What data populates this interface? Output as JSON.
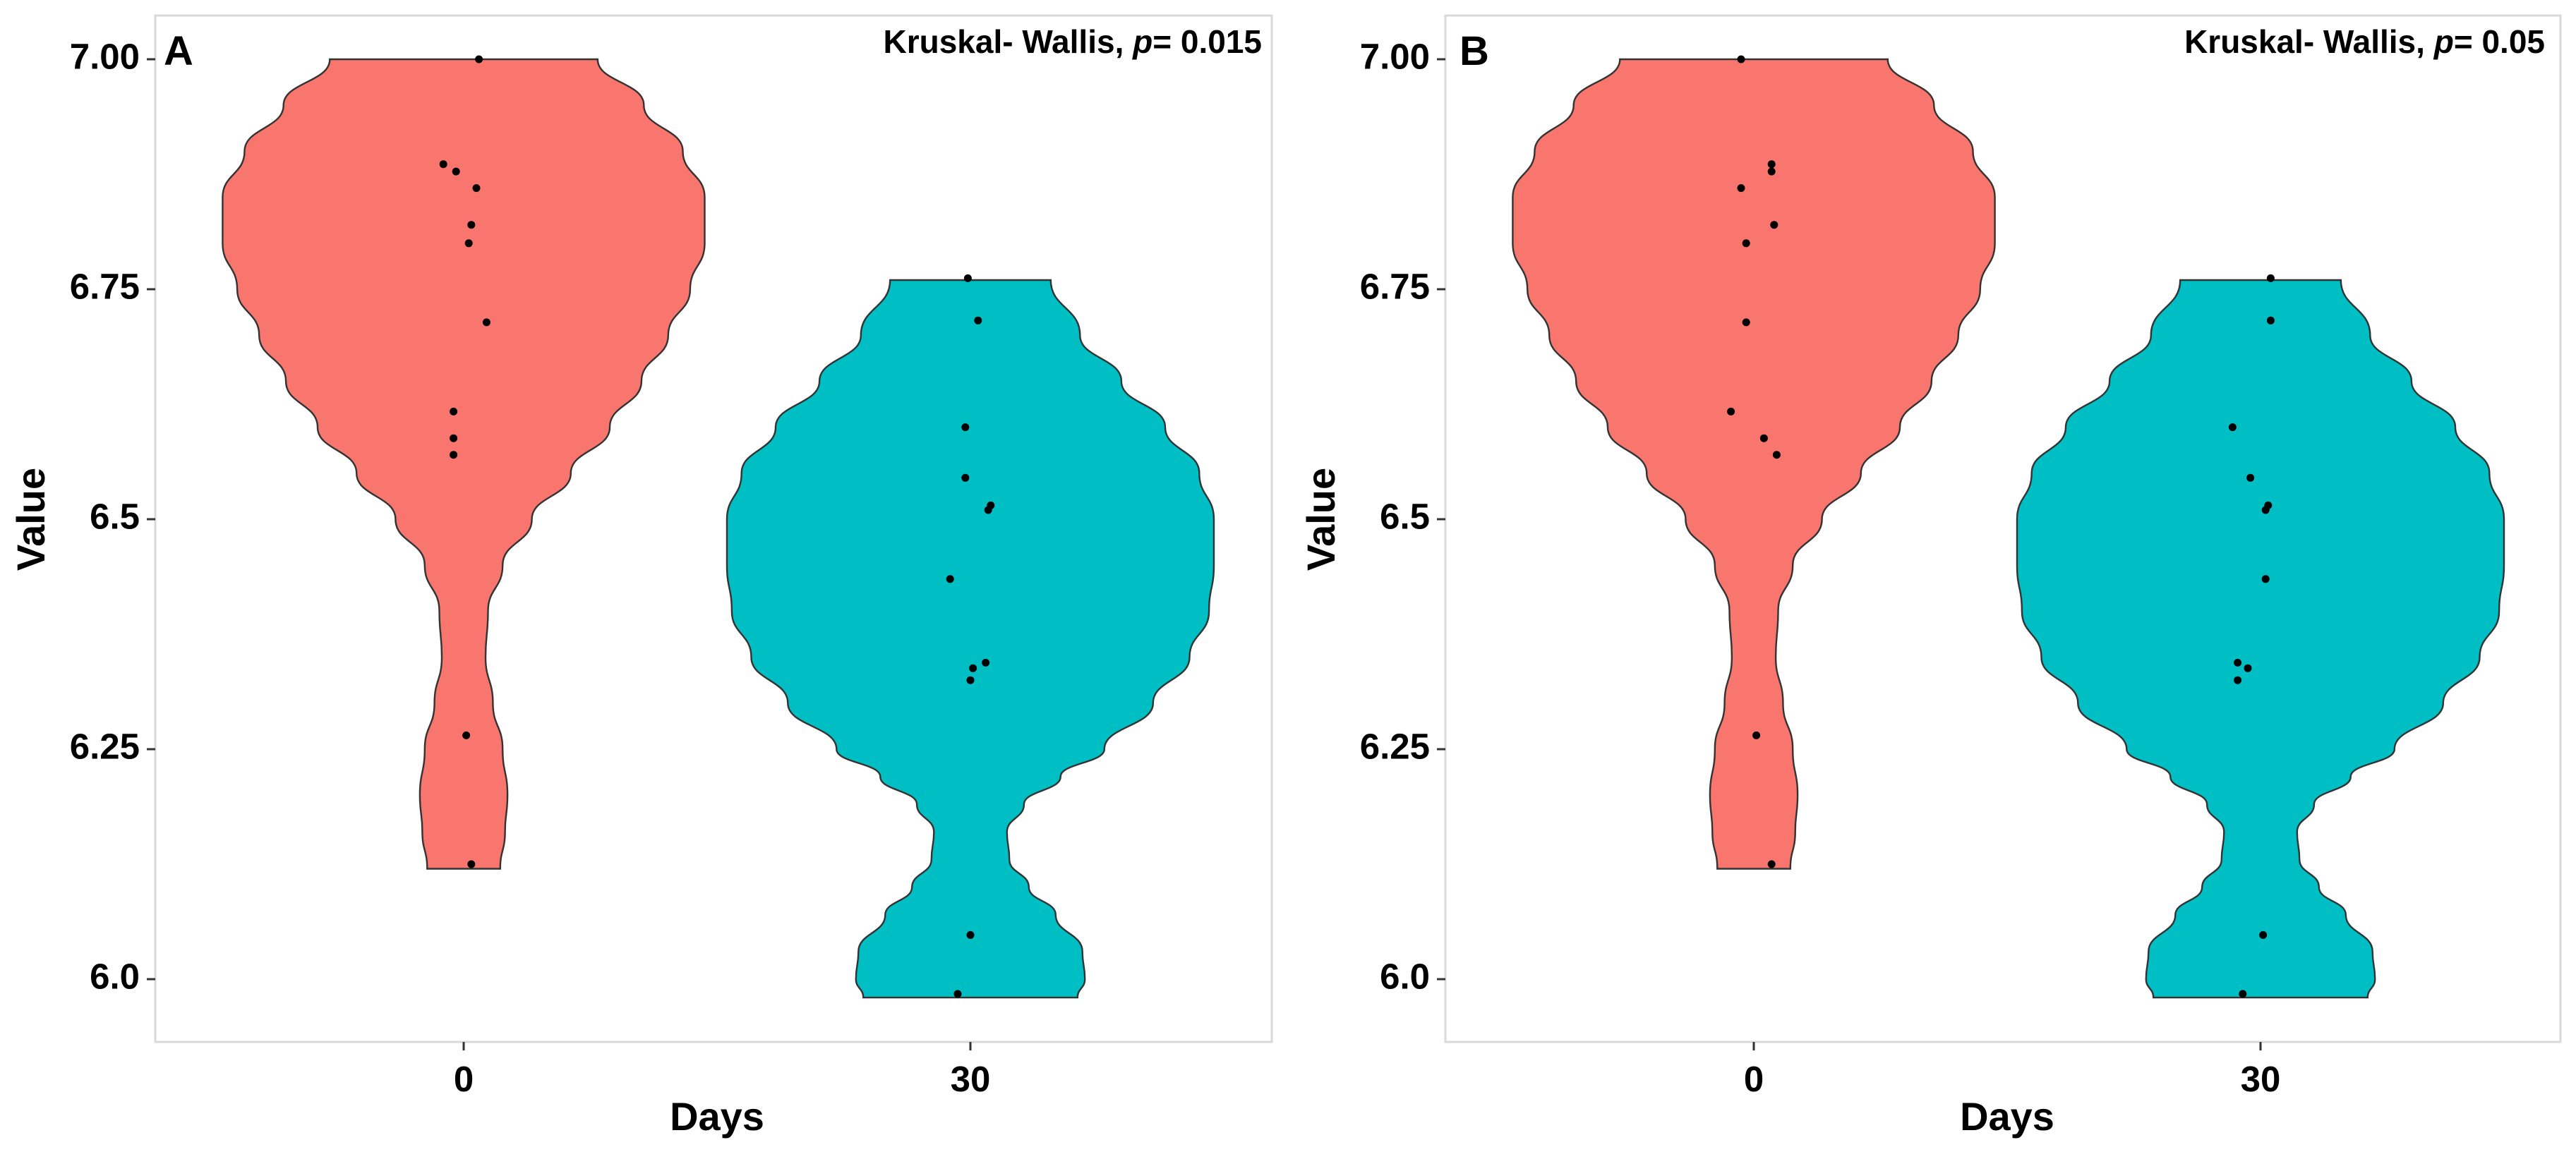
{
  "figure": {
    "x_axis_title": "Days",
    "y_axis_title": "Value"
  },
  "chart_data": [
    {
      "type": "violin",
      "panel_label": "A",
      "stat": {
        "prefix": "Kruskal- Wallis, ",
        "p_label": "p",
        "suffix": "= 0.015"
      },
      "xlabel": "Days",
      "ylabel": "Value",
      "ylim": [
        5.96,
        7.05
      ],
      "yticks": [
        {
          "value": 6.0,
          "label": "6.0"
        },
        {
          "value": 6.25,
          "label": "6.25"
        },
        {
          "value": 6.5,
          "label": "6.5"
        },
        {
          "value": 6.75,
          "label": "6.75"
        },
        {
          "value": 7.0,
          "label": "7.00"
        }
      ],
      "groups": [
        {
          "category": "0",
          "color": "#F8766D",
          "range": [
            6.12,
            7.0
          ],
          "density": [
            [
              6.12,
              0.15
            ],
            [
              6.16,
              0.17
            ],
            [
              6.2,
              0.18
            ],
            [
              6.25,
              0.16
            ],
            [
              6.3,
              0.12
            ],
            [
              6.35,
              0.09
            ],
            [
              6.4,
              0.1
            ],
            [
              6.45,
              0.16
            ],
            [
              6.5,
              0.28
            ],
            [
              6.55,
              0.44
            ],
            [
              6.6,
              0.6
            ],
            [
              6.65,
              0.73
            ],
            [
              6.7,
              0.84
            ],
            [
              6.75,
              0.93
            ],
            [
              6.8,
              0.99
            ],
            [
              6.85,
              0.99
            ],
            [
              6.9,
              0.9
            ],
            [
              6.95,
              0.74
            ],
            [
              7.0,
              0.55
            ]
          ],
          "points": [
            {
              "v": 6.125,
              "j": 0.03
            },
            {
              "v": 6.265,
              "j": 0.01
            },
            {
              "v": 6.57,
              "j": -0.04
            },
            {
              "v": 6.588,
              "j": -0.04
            },
            {
              "v": 6.617,
              "j": -0.04
            },
            {
              "v": 6.714,
              "j": 0.09
            },
            {
              "v": 6.8,
              "j": 0.02
            },
            {
              "v": 6.82,
              "j": 0.03
            },
            {
              "v": 6.86,
              "j": 0.05
            },
            {
              "v": 6.878,
              "j": -0.03
            },
            {
              "v": 6.886,
              "j": -0.08
            },
            {
              "v": 7.0,
              "j": 0.06
            }
          ]
        },
        {
          "category": "30",
          "color": "#00BFC4",
          "range": [
            5.98,
            6.76
          ],
          "density": [
            [
              5.98,
              0.44
            ],
            [
              6.0,
              0.47
            ],
            [
              6.03,
              0.46
            ],
            [
              6.07,
              0.35
            ],
            [
              6.1,
              0.24
            ],
            [
              6.13,
              0.16
            ],
            [
              6.16,
              0.15
            ],
            [
              6.19,
              0.22
            ],
            [
              6.22,
              0.37
            ],
            [
              6.25,
              0.55
            ],
            [
              6.3,
              0.75
            ],
            [
              6.35,
              0.9
            ],
            [
              6.4,
              0.98
            ],
            [
              6.45,
              1.0
            ],
            [
              6.5,
              1.0
            ],
            [
              6.55,
              0.94
            ],
            [
              6.6,
              0.8
            ],
            [
              6.65,
              0.62
            ],
            [
              6.7,
              0.45
            ],
            [
              6.76,
              0.33
            ]
          ],
          "points": [
            {
              "v": 5.984,
              "j": -0.05
            },
            {
              "v": 6.048,
              "j": 0.0
            },
            {
              "v": 6.325,
              "j": 0.0
            },
            {
              "v": 6.338,
              "j": 0.01
            },
            {
              "v": 6.344,
              "j": 0.06
            },
            {
              "v": 6.435,
              "j": -0.08
            },
            {
              "v": 6.51,
              "j": 0.07
            },
            {
              "v": 6.515,
              "j": 0.08
            },
            {
              "v": 6.545,
              "j": -0.02
            },
            {
              "v": 6.6,
              "j": -0.02
            },
            {
              "v": 6.716,
              "j": 0.03
            },
            {
              "v": 6.762,
              "j": -0.01
            }
          ]
        }
      ]
    },
    {
      "type": "violin",
      "panel_label": "B",
      "stat": {
        "prefix": "Kruskal- Wallis, ",
        "p_label": "p",
        "suffix": "= 0.05"
      },
      "xlabel": "Days",
      "ylabel": "Value",
      "ylim": [
        5.96,
        7.05
      ],
      "yticks": [
        {
          "value": 6.0,
          "label": "6.0"
        },
        {
          "value": 6.25,
          "label": "6.25"
        },
        {
          "value": 6.5,
          "label": "6.5"
        },
        {
          "value": 6.75,
          "label": "6.75"
        },
        {
          "value": 7.0,
          "label": "7.00"
        }
      ],
      "groups": [
        {
          "category": "0",
          "color": "#F8766D",
          "range": [
            6.12,
            7.0
          ],
          "density": [
            [
              6.12,
              0.15
            ],
            [
              6.16,
              0.17
            ],
            [
              6.2,
              0.18
            ],
            [
              6.25,
              0.16
            ],
            [
              6.3,
              0.12
            ],
            [
              6.35,
              0.09
            ],
            [
              6.4,
              0.1
            ],
            [
              6.45,
              0.16
            ],
            [
              6.5,
              0.28
            ],
            [
              6.55,
              0.44
            ],
            [
              6.6,
              0.6
            ],
            [
              6.65,
              0.73
            ],
            [
              6.7,
              0.84
            ],
            [
              6.75,
              0.93
            ],
            [
              6.8,
              0.99
            ],
            [
              6.85,
              0.99
            ],
            [
              6.9,
              0.9
            ],
            [
              6.95,
              0.74
            ],
            [
              7.0,
              0.55
            ]
          ],
          "points": [
            {
              "v": 6.125,
              "j": 0.07
            },
            {
              "v": 6.265,
              "j": 0.01
            },
            {
              "v": 6.57,
              "j": 0.09
            },
            {
              "v": 6.588,
              "j": 0.04
            },
            {
              "v": 6.617,
              "j": -0.09
            },
            {
              "v": 6.714,
              "j": -0.03
            },
            {
              "v": 6.8,
              "j": -0.03
            },
            {
              "v": 6.82,
              "j": 0.08
            },
            {
              "v": 6.86,
              "j": -0.05
            },
            {
              "v": 6.878,
              "j": 0.07
            },
            {
              "v": 6.886,
              "j": 0.07
            },
            {
              "v": 7.0,
              "j": -0.05
            }
          ]
        },
        {
          "category": "30",
          "color": "#00BFC4",
          "range": [
            5.98,
            6.76
          ],
          "density": [
            [
              5.98,
              0.44
            ],
            [
              6.0,
              0.47
            ],
            [
              6.03,
              0.46
            ],
            [
              6.07,
              0.35
            ],
            [
              6.1,
              0.24
            ],
            [
              6.13,
              0.16
            ],
            [
              6.16,
              0.15
            ],
            [
              6.19,
              0.22
            ],
            [
              6.22,
              0.37
            ],
            [
              6.25,
              0.55
            ],
            [
              6.3,
              0.75
            ],
            [
              6.35,
              0.9
            ],
            [
              6.4,
              0.98
            ],
            [
              6.45,
              1.0
            ],
            [
              6.5,
              1.0
            ],
            [
              6.55,
              0.94
            ],
            [
              6.6,
              0.8
            ],
            [
              6.65,
              0.62
            ],
            [
              6.7,
              0.45
            ],
            [
              6.76,
              0.33
            ]
          ],
          "points": [
            {
              "v": 5.984,
              "j": -0.07
            },
            {
              "v": 6.048,
              "j": 0.01
            },
            {
              "v": 6.325,
              "j": -0.09
            },
            {
              "v": 6.338,
              "j": -0.05
            },
            {
              "v": 6.344,
              "j": -0.09
            },
            {
              "v": 6.435,
              "j": 0.02
            },
            {
              "v": 6.51,
              "j": 0.02
            },
            {
              "v": 6.515,
              "j": 0.03
            },
            {
              "v": 6.545,
              "j": -0.04
            },
            {
              "v": 6.6,
              "j": -0.11
            },
            {
              "v": 6.716,
              "j": 0.04
            },
            {
              "v": 6.762,
              "j": 0.04
            }
          ]
        }
      ]
    }
  ]
}
